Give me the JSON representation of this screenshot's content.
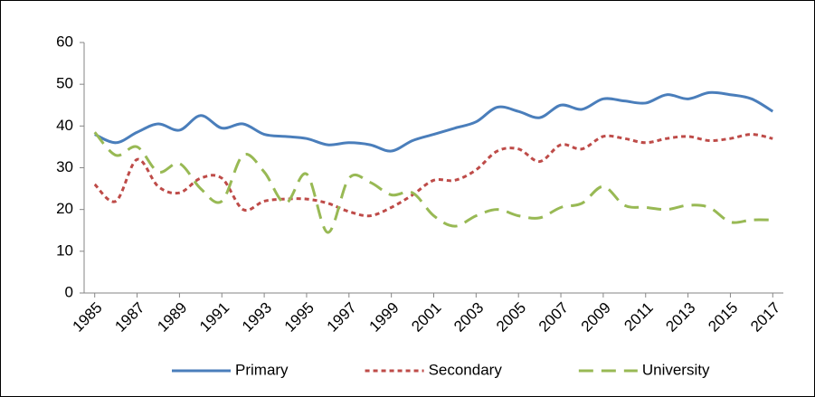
{
  "chart_data": {
    "type": "line",
    "x": [
      1985,
      1986,
      1987,
      1988,
      1989,
      1990,
      1991,
      1992,
      1993,
      1994,
      1995,
      1996,
      1997,
      1998,
      1999,
      2000,
      2001,
      2002,
      2003,
      2004,
      2005,
      2006,
      2007,
      2008,
      2009,
      2010,
      2011,
      2012,
      2013,
      2014,
      2015,
      2016,
      2017
    ],
    "xlim": [
      1984.5,
      2017.5
    ],
    "xticks": [
      1985,
      1987,
      1989,
      1991,
      1993,
      1995,
      1997,
      1999,
      2001,
      2003,
      2005,
      2007,
      2009,
      2011,
      2013,
      2015,
      2017
    ],
    "ylim": [
      0,
      60
    ],
    "yticks": [
      0,
      10,
      20,
      30,
      40,
      50,
      60
    ],
    "smooth": true,
    "legend": "bottom",
    "series": [
      {
        "name": "Primary",
        "color": "#4a7ebb",
        "dash": "none",
        "values": [
          38,
          36,
          38.5,
          40.5,
          39,
          42.5,
          39.5,
          40.5,
          38,
          37.5,
          37,
          35.5,
          36,
          35.5,
          34,
          36.5,
          38,
          39.5,
          41,
          44.5,
          43.5,
          42,
          45,
          44,
          46.5,
          46,
          45.5,
          47.5,
          46.5,
          48,
          47.5,
          46.5,
          43.5
        ]
      },
      {
        "name": "Secondary",
        "color": "#be4b48",
        "dash": "5,4",
        "values": [
          26,
          22,
          32,
          25.5,
          24,
          27.5,
          27.5,
          20,
          22,
          22.5,
          22.5,
          21.5,
          19.5,
          18.5,
          20.5,
          23.5,
          27,
          27,
          29.5,
          34,
          34.5,
          31.5,
          35.5,
          34.5,
          37.5,
          37,
          36,
          37,
          37.5,
          36.5,
          37,
          38,
          37
        ]
      },
      {
        "name": "University",
        "color": "#98b954",
        "dash": "16,9",
        "values": [
          38.5,
          33,
          35,
          29,
          31,
          25,
          22,
          33,
          29,
          21.5,
          28.5,
          14.5,
          27.5,
          26.5,
          23.5,
          24,
          18.5,
          16,
          18.5,
          20,
          18.5,
          18,
          20.5,
          21.5,
          25.5,
          21,
          20.5,
          20,
          21,
          20.5,
          17,
          17.5,
          17.5
        ]
      }
    ]
  }
}
